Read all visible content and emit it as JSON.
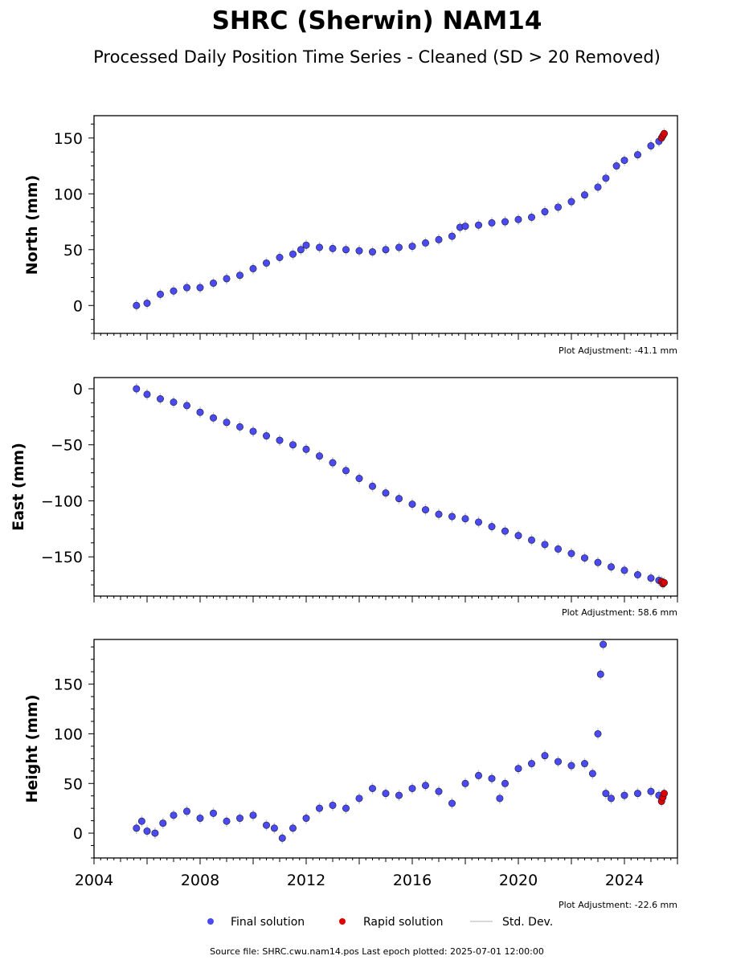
{
  "title": "SHRC (Sherwin) NAM14",
  "subtitle": "Processed Daily Position Time Series - Cleaned (SD > 20 Removed)",
  "footer": "Source file: SHRC.cwu.nam14.pos  Last epoch plotted: 2025-07-01 12:00:00",
  "legend": {
    "items": [
      {
        "label": "Final solution",
        "color": "#4a4af0",
        "kind": "dot"
      },
      {
        "label": "Rapid solution",
        "color": "#e00000",
        "kind": "dot"
      },
      {
        "label": "Std. Dev.",
        "color": "#cccccc",
        "kind": "line"
      }
    ]
  },
  "colors": {
    "final": "#4a4af0",
    "rapid": "#e00000",
    "stddev": "#c8c8c8",
    "marker_edge": "#1a1a3a"
  },
  "chart_data": [
    {
      "type": "scatter",
      "ylabel": "North (mm)",
      "adjustment": "Plot Adjustment: -41.1 mm",
      "xlim": [
        2004,
        2026
      ],
      "ylim": [
        -25,
        170
      ],
      "yticks": [
        0,
        50,
        100,
        150
      ],
      "ytick_labels": [
        "0",
        "50",
        "100",
        "150"
      ],
      "xticks": [
        2004,
        2008,
        2012,
        2016,
        2020,
        2024
      ],
      "xtick_labels": [],
      "series": [
        {
          "name": "Final solution",
          "x": [
            2005.6,
            2006.0,
            2006.5,
            2007.0,
            2007.5,
            2008.0,
            2008.5,
            2009.0,
            2009.5,
            2010.0,
            2010.5,
            2011.0,
            2011.5,
            2011.8,
            2012.0,
            2012.5,
            2013.0,
            2013.5,
            2014.0,
            2014.5,
            2015.0,
            2015.5,
            2016.0,
            2016.5,
            2017.0,
            2017.5,
            2017.8,
            2018.0,
            2018.5,
            2019.0,
            2019.5,
            2020.0,
            2020.5,
            2021.0,
            2021.5,
            2022.0,
            2022.5,
            2023.0,
            2023.3,
            2023.7,
            2024.0,
            2024.5,
            2025.0,
            2025.3
          ],
          "y": [
            0,
            2,
            10,
            13,
            16,
            16,
            20,
            24,
            27,
            33,
            38,
            43,
            46,
            50,
            54,
            52,
            51,
            50,
            49,
            48,
            50,
            52,
            53,
            56,
            59,
            62,
            70,
            71,
            72,
            74,
            75,
            77,
            79,
            84,
            88,
            93,
            99,
            106,
            114,
            125,
            130,
            135,
            143,
            147
          ]
        },
        {
          "name": "Rapid solution",
          "x": [
            2025.4,
            2025.45,
            2025.5
          ],
          "y": [
            150,
            152,
            154
          ]
        }
      ]
    },
    {
      "type": "scatter",
      "ylabel": "East (mm)",
      "adjustment": "Plot Adjustment: 58.6 mm",
      "xlim": [
        2004,
        2026
      ],
      "ylim": [
        -185,
        10
      ],
      "yticks": [
        0,
        -50,
        -100,
        -150
      ],
      "ytick_labels": [
        "0",
        "−50",
        "−100",
        "−150"
      ],
      "xticks": [
        2004,
        2008,
        2012,
        2016,
        2020,
        2024
      ],
      "xtick_labels": [],
      "series": [
        {
          "name": "Final solution",
          "x": [
            2005.6,
            2006.0,
            2006.5,
            2007.0,
            2007.5,
            2008.0,
            2008.5,
            2009.0,
            2009.5,
            2010.0,
            2010.5,
            2011.0,
            2011.5,
            2012.0,
            2012.5,
            2013.0,
            2013.5,
            2014.0,
            2014.5,
            2015.0,
            2015.5,
            2016.0,
            2016.5,
            2017.0,
            2017.5,
            2018.0,
            2018.5,
            2019.0,
            2019.5,
            2020.0,
            2020.5,
            2021.0,
            2021.5,
            2022.0,
            2022.5,
            2023.0,
            2023.5,
            2024.0,
            2024.5,
            2025.0,
            2025.3
          ],
          "y": [
            0,
            -5,
            -9,
            -12,
            -15,
            -21,
            -26,
            -30,
            -34,
            -38,
            -42,
            -46,
            -50,
            -54,
            -60,
            -66,
            -73,
            -80,
            -87,
            -93,
            -98,
            -103,
            -108,
            -112,
            -114,
            -116,
            -119,
            -123,
            -127,
            -131,
            -135,
            -139,
            -143,
            -147,
            -151,
            -155,
            -159,
            -162,
            -166,
            -169,
            -171
          ]
        },
        {
          "name": "Rapid solution",
          "x": [
            2025.4,
            2025.45,
            2025.5
          ],
          "y": [
            -172,
            -174,
            -173
          ]
        }
      ]
    },
    {
      "type": "scatter",
      "ylabel": "Height (mm)",
      "adjustment": "Plot Adjustment: -22.6 mm",
      "xlim": [
        2004,
        2026
      ],
      "ylim": [
        -25,
        195
      ],
      "yticks": [
        0,
        50,
        100,
        150
      ],
      "ytick_labels": [
        "0",
        "50",
        "100",
        "150"
      ],
      "xticks": [
        2004,
        2008,
        2012,
        2016,
        2020,
        2024
      ],
      "xtick_labels": [
        "2004",
        "2008",
        "2012",
        "2016",
        "2020",
        "2024"
      ],
      "series": [
        {
          "name": "Final solution",
          "x": [
            2005.6,
            2005.8,
            2006.0,
            2006.3,
            2006.6,
            2007.0,
            2007.5,
            2008.0,
            2008.5,
            2009.0,
            2009.5,
            2010.0,
            2010.5,
            2010.8,
            2011.1,
            2011.5,
            2012.0,
            2012.5,
            2013.0,
            2013.5,
            2014.0,
            2014.5,
            2015.0,
            2015.5,
            2016.0,
            2016.5,
            2017.0,
            2017.5,
            2018.0,
            2018.5,
            2019.0,
            2019.3,
            2019.5,
            2020.0,
            2020.5,
            2021.0,
            2021.5,
            2022.0,
            2022.5,
            2022.8,
            2023.0,
            2023.1,
            2023.2,
            2023.3,
            2023.5,
            2024.0,
            2024.5,
            2025.0,
            2025.3
          ],
          "y": [
            5,
            12,
            2,
            0,
            10,
            18,
            22,
            15,
            20,
            12,
            15,
            18,
            8,
            5,
            -5,
            5,
            15,
            25,
            28,
            25,
            35,
            45,
            40,
            38,
            45,
            48,
            42,
            30,
            50,
            58,
            55,
            35,
            50,
            65,
            70,
            78,
            72,
            68,
            70,
            60,
            100,
            160,
            190,
            40,
            35,
            38,
            40,
            42,
            38
          ]
        },
        {
          "name": "Rapid solution",
          "x": [
            2025.4,
            2025.45,
            2025.5
          ],
          "y": [
            32,
            36,
            40
          ]
        }
      ]
    }
  ]
}
